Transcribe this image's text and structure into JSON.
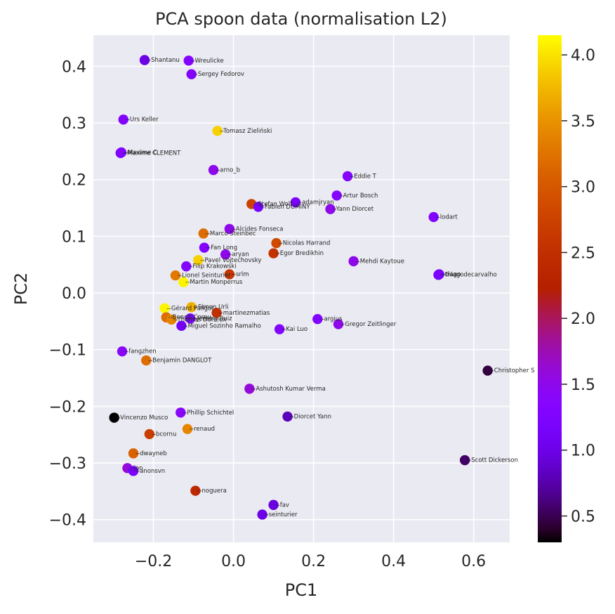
{
  "chart_data": {
    "type": "scatter",
    "title": "PCA spoon data (normalisation L2)",
    "xlabel": "PC1",
    "ylabel": "PC2",
    "xlim": [
      -0.35,
      0.69
    ],
    "ylim": [
      -0.44,
      0.455
    ],
    "xticks": [
      -0.2,
      0.0,
      0.2,
      0.4,
      0.6
    ],
    "xtick_labels": [
      "−0.2",
      "0.0",
      "0.2",
      "0.4",
      "0.6"
    ],
    "yticks": [
      -0.4,
      -0.3,
      -0.2,
      -0.1,
      0.0,
      0.1,
      0.2,
      0.3,
      0.4
    ],
    "ytick_labels": [
      "−0.4",
      "−0.3",
      "−0.2",
      "−0.1",
      "0.0",
      "0.1",
      "0.2",
      "0.3",
      "0.4"
    ],
    "grid": true,
    "background_color": "#eaeaf2",
    "colormap": "gnuplot",
    "colorbar": {
      "min": 0.3,
      "max": 4.15,
      "ticks": [
        0.5,
        1.0,
        1.5,
        2.0,
        2.5,
        3.0,
        3.5,
        4.0
      ],
      "tick_labels": [
        "0.5",
        "1.0",
        "1.5",
        "2.0",
        "2.5",
        "3.0",
        "3.5",
        "4.0"
      ]
    },
    "points": [
      {
        "label": "Shantanu",
        "x": -0.222,
        "y": 0.411,
        "c": 1.0
      },
      {
        "label": "Wreulicke",
        "x": -0.112,
        "y": 0.41,
        "c": 1.3
      },
      {
        "label": "Sergey Fedorov",
        "x": -0.105,
        "y": 0.386,
        "c": 1.3
      },
      {
        "label": "Urs Keller",
        "x": -0.275,
        "y": 0.306,
        "c": 1.3
      },
      {
        "label": "Tomasz Zieliński",
        "x": -0.04,
        "y": 0.286,
        "c": 3.9
      },
      {
        "label": "Maxime CLEMENT",
        "x": -0.282,
        "y": 0.247,
        "c": 1.1
      },
      {
        "label": "Maxime C",
        "x": -0.28,
        "y": 0.248,
        "c": 1.3
      },
      {
        "label": "arno_b",
        "x": -0.05,
        "y": 0.217,
        "c": 1.5
      },
      {
        "label": "Eddie T",
        "x": 0.285,
        "y": 0.206,
        "c": 1.35
      },
      {
        "label": "Artur Bosch",
        "x": 0.258,
        "y": 0.172,
        "c": 1.35
      },
      {
        "label": "Stefan Wolf",
        "x": 0.045,
        "y": 0.157,
        "c": 2.75
      },
      {
        "label": "Fabien DUMINY",
        "x": 0.062,
        "y": 0.152,
        "c": 1.2
      },
      {
        "label": "adamjryan",
        "x": 0.155,
        "y": 0.16,
        "c": 1.2
      },
      {
        "label": "Yann Diorcet",
        "x": 0.242,
        "y": 0.148,
        "c": 1.5
      },
      {
        "label": "lodart",
        "x": 0.5,
        "y": 0.134,
        "c": 1.3
      },
      {
        "label": "Alcides Fonseca",
        "x": -0.01,
        "y": 0.113,
        "c": 1.5
      },
      {
        "label": "Marco Steinbec",
        "x": -0.075,
        "y": 0.105,
        "c": 3.2
      },
      {
        "label": "Nicolas Harrand",
        "x": 0.107,
        "y": 0.088,
        "c": 2.85
      },
      {
        "label": "Fan Long",
        "x": -0.073,
        "y": 0.08,
        "c": 1.3
      },
      {
        "label": "Egor Bredikhin",
        "x": 0.1,
        "y": 0.07,
        "c": 2.55
      },
      {
        "label": "aryan",
        "x": -0.02,
        "y": 0.068,
        "c": 1.5
      },
      {
        "label": "Mehdi Kaytoue",
        "x": 0.3,
        "y": 0.056,
        "c": 1.5
      },
      {
        "label": "Pavel Vojtechovsky",
        "x": -0.088,
        "y": 0.058,
        "c": 3.9
      },
      {
        "label": "Filip Krakowski",
        "x": -0.118,
        "y": 0.047,
        "c": 1.3
      },
      {
        "label": "Lionel Seinturier",
        "x": -0.145,
        "y": 0.031,
        "c": 3.3
      },
      {
        "label": "srlm",
        "x": -0.01,
        "y": 0.033,
        "c": 2.6
      },
      {
        "label": "Martin Monperrus",
        "x": -0.125,
        "y": 0.019,
        "c": 4.1
      },
      {
        "label": "thiagodecarvalho",
        "x": 0.512,
        "y": 0.032,
        "c": 1.1
      },
      {
        "label": "tiago",
        "x": 0.514,
        "y": 0.033,
        "c": 1.2
      },
      {
        "label": "Gérard Paligot",
        "x": -0.172,
        "y": -0.027,
        "c": 4.1
      },
      {
        "label": "Simon Urli",
        "x": -0.105,
        "y": -0.025,
        "c": 3.7
      },
      {
        "label": "martinezmatias",
        "x": -0.042,
        "y": -0.035,
        "c": 2.5
      },
      {
        "label": "Benoit Cornu",
        "x": -0.168,
        "y": -0.043,
        "c": 3.2
      },
      {
        "label": "Thomas Durieux",
        "x": -0.155,
        "y": -0.047,
        "c": 3.4
      },
      {
        "label": "Jeremy Ruiz",
        "x": -0.108,
        "y": -0.045,
        "c": 1.2
      },
      {
        "label": "Miguel Sozinho Ramalho",
        "x": -0.13,
        "y": -0.058,
        "c": 1.1
      },
      {
        "label": "argius",
        "x": 0.21,
        "y": -0.046,
        "c": 1.3
      },
      {
        "label": "Kai Luo",
        "x": 0.115,
        "y": -0.064,
        "c": 1.3
      },
      {
        "label": "Gregor Zeitlinger",
        "x": 0.262,
        "y": -0.055,
        "c": 1.5
      },
      {
        "label": "fangzhen",
        "x": -0.278,
        "y": -0.103,
        "c": 1.4
      },
      {
        "label": "Benjamin DANGLOT",
        "x": -0.218,
        "y": -0.119,
        "c": 3.2
      },
      {
        "label": "Christopher S",
        "x": 0.635,
        "y": -0.137,
        "c": 0.45
      },
      {
        "label": "Ashutosh Kumar Verma",
        "x": 0.04,
        "y": -0.169,
        "c": 1.6
      },
      {
        "label": "Vincenzo Musco",
        "x": -0.298,
        "y": -0.22,
        "c": 0.3
      },
      {
        "label": "Phillip Schichtel",
        "x": -0.132,
        "y": -0.211,
        "c": 1.4
      },
      {
        "label": "Diorcet Yann",
        "x": 0.135,
        "y": -0.218,
        "c": 0.8
      },
      {
        "label": "renaud",
        "x": -0.115,
        "y": -0.24,
        "c": 3.4
      },
      {
        "label": "bcornu",
        "x": -0.21,
        "y": -0.249,
        "c": 2.7
      },
      {
        "label": "dwayneb",
        "x": -0.25,
        "y": -0.283,
        "c": 3.1
      },
      {
        "label": "Scott Dickerson",
        "x": 0.578,
        "y": -0.295,
        "c": 0.55
      },
      {
        "label": "jon",
        "x": -0.265,
        "y": -0.309,
        "c": 1.6
      },
      {
        "label": "anonsvn",
        "x": -0.25,
        "y": -0.314,
        "c": 1.2
      },
      {
        "label": "noguera",
        "x": -0.095,
        "y": -0.349,
        "c": 2.4
      },
      {
        "label": "fav",
        "x": 0.1,
        "y": -0.374,
        "c": 0.95
      },
      {
        "label": "seinturier",
        "x": 0.072,
        "y": -0.391,
        "c": 1.0
      }
    ]
  }
}
